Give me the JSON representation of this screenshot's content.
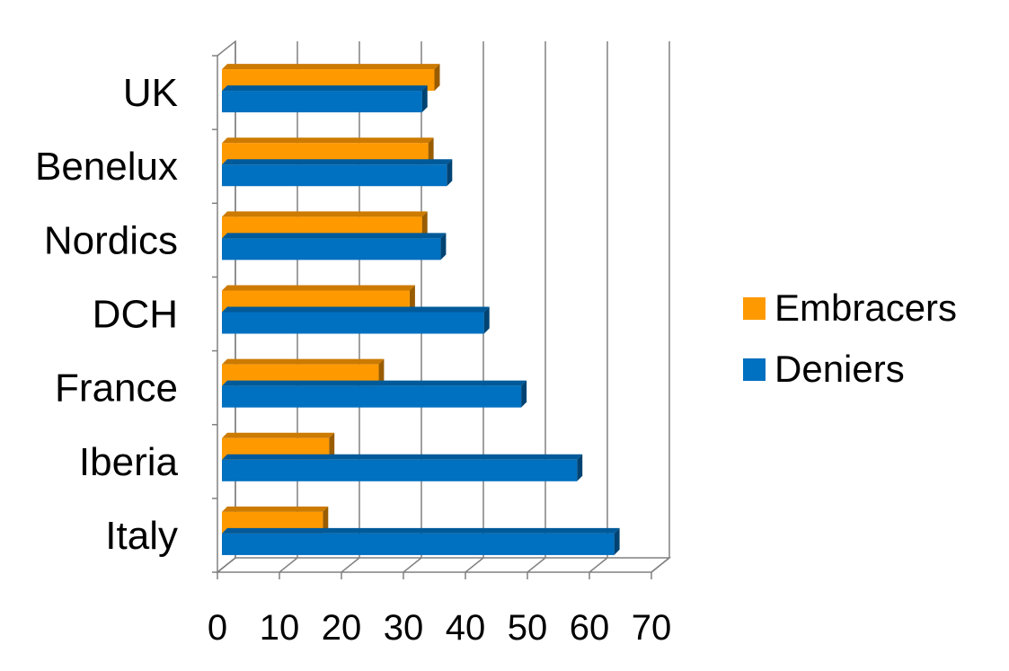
{
  "chart_data": {
    "type": "bar",
    "orientation": "horizontal",
    "style": "3d",
    "title": "",
    "xlabel": "",
    "ylabel": "",
    "categories": [
      "UK",
      "Benelux",
      "Nordics",
      "DCH",
      "France",
      "Iberia",
      "Italy"
    ],
    "series": [
      {
        "name": "Embracers",
        "color": "#ff9900",
        "values": [
          35,
          34,
          33,
          31,
          26,
          18,
          17
        ]
      },
      {
        "name": "Deniers",
        "color": "#0070c0",
        "values": [
          33,
          37,
          36,
          43,
          49,
          58,
          64
        ]
      }
    ],
    "xlim": [
      0,
      70
    ],
    "xticks": [
      "0",
      "10",
      "20",
      "30",
      "40",
      "50",
      "60",
      "70"
    ],
    "grid": true,
    "legend_position": "right"
  }
}
